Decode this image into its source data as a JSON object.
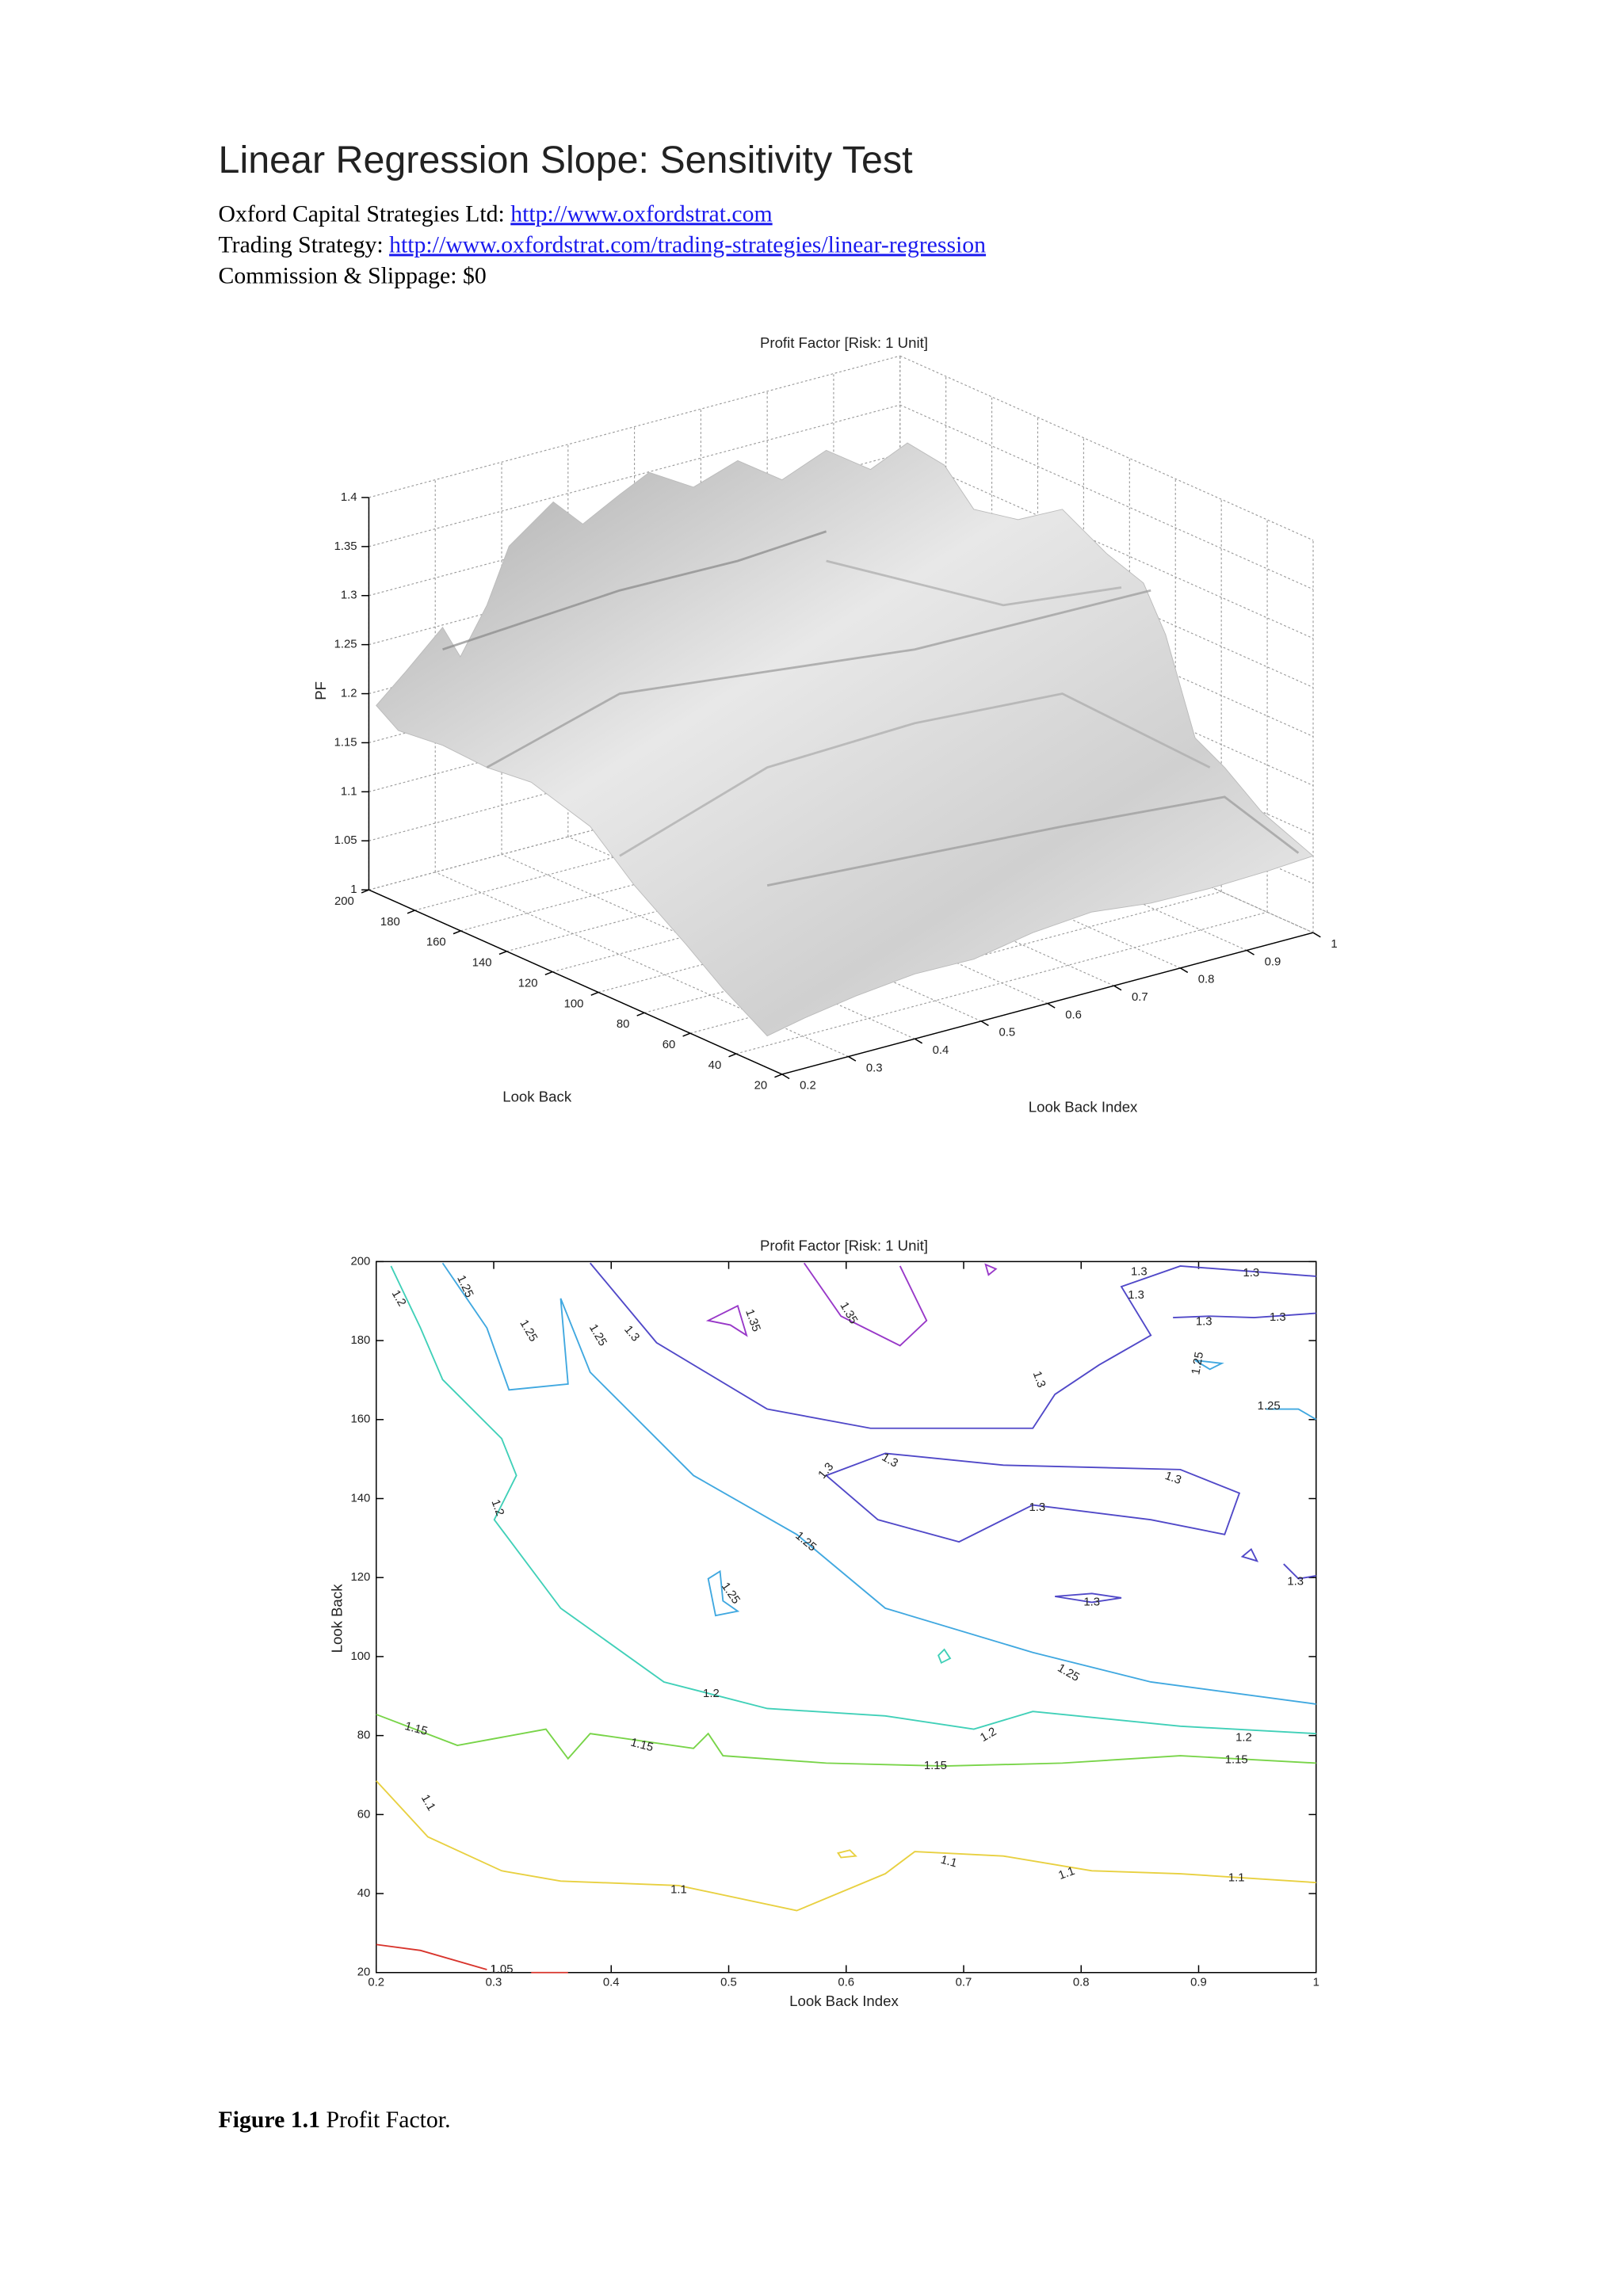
{
  "header": {
    "title": "Linear Regression Slope: Sensitivity Test",
    "lines": [
      {
        "label": "Oxford Capital Strategies Ltd:",
        "link": "http://www.oxfordstrat.com"
      },
      {
        "label": "Trading Strategy:",
        "link": "http://www.oxfordstrat.com/trading-strategies/linear-regression"
      },
      {
        "label": "Commission & Slippage: $0"
      }
    ]
  },
  "chart_data": [
    {
      "type": "surface",
      "title": "Profit Factor [Risk: 1 Unit]",
      "xlabel": "Look Back Index",
      "ylabel": "Look Back",
      "zlabel": "PF",
      "xlim": [
        0.2,
        1
      ],
      "xticks": [
        0.2,
        0.3,
        0.4,
        0.5,
        0.6,
        0.7,
        0.8,
        0.9,
        1
      ],
      "ylim": [
        20,
        200
      ],
      "yticks": [
        20,
        40,
        60,
        80,
        100,
        120,
        140,
        160,
        180,
        200
      ],
      "zlim": [
        1,
        1.4
      ],
      "zticks": [
        1,
        1.05,
        1.1,
        1.15,
        1.2,
        1.25,
        1.3,
        1.35,
        1.4
      ],
      "grid": true
    },
    {
      "type": "contour",
      "title": "Profit Factor [Risk: 1 Unit]",
      "xlabel": "Look Back Index",
      "ylabel": "Look Back",
      "xlim": [
        0.2,
        1
      ],
      "xticks": [
        0.2,
        0.3,
        0.4,
        0.5,
        0.6,
        0.7,
        0.8,
        0.9,
        1
      ],
      "ylim": [
        20,
        200
      ],
      "yticks": [
        20,
        40,
        60,
        80,
        100,
        120,
        140,
        160,
        180,
        200
      ],
      "levels": [
        1.05,
        1.1,
        1.15,
        1.2,
        1.25,
        1.3,
        1.35
      ],
      "colors": [
        "#d8342c",
        "#e8d040",
        "#78d448",
        "#40d0b8",
        "#40a8e0",
        "#5048c8",
        "#9838c8"
      ]
    }
  ],
  "caption": {
    "label": "Figure 1.1",
    "text": "Profit Factor."
  }
}
